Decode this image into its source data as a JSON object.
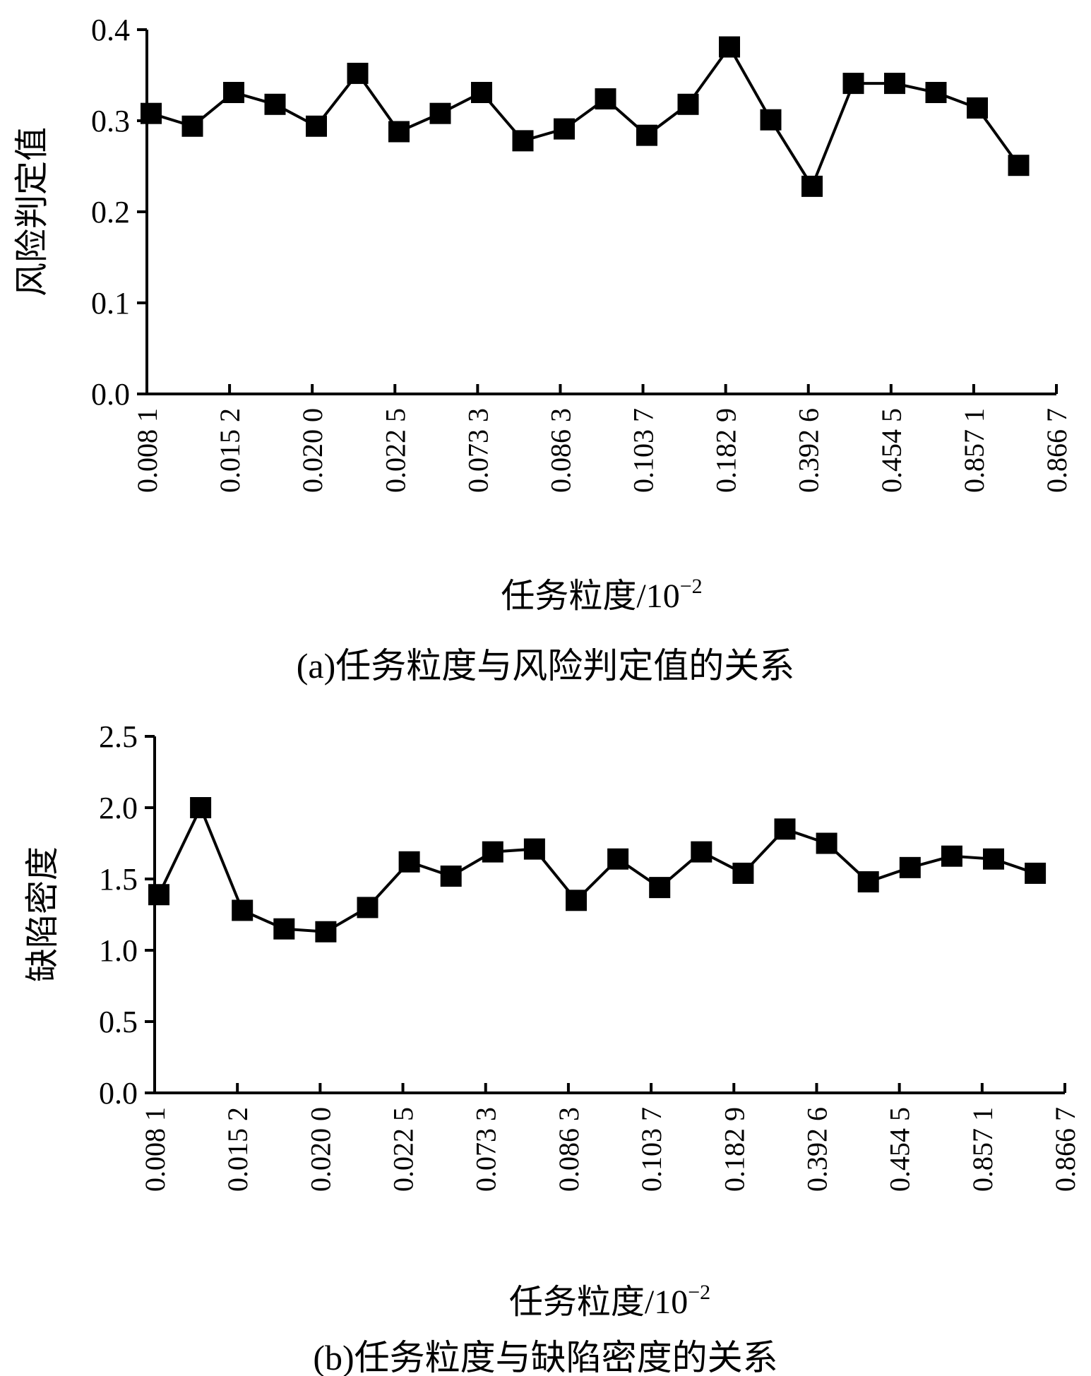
{
  "chart_data": [
    {
      "type": "line",
      "caption": "(a)任务粒度与风险判定值的关系",
      "xlabel": "任务粒度/10",
      "xlabel_exp": "−2",
      "ylabel": "风险判定值",
      "x_tick_labels": [
        "0.008 1",
        "0.015 2",
        "0.020 0",
        "0.022 5",
        "0.073 3",
        "0.086 3",
        "0.103 7",
        "0.182 9",
        "0.392 6",
        "0.454 5",
        "0.857 1",
        "0.866 7"
      ],
      "y_tick_labels": [
        "0.0",
        "0.1",
        "0.2",
        "0.3",
        "0.4"
      ],
      "ylim": [
        0,
        0.4
      ],
      "grid": false,
      "marker": "square",
      "values": [
        0.308,
        0.294,
        0.331,
        0.318,
        0.294,
        0.352,
        0.288,
        0.308,
        0.331,
        0.278,
        0.291,
        0.324,
        0.284,
        0.318,
        0.381,
        0.301,
        0.228,
        0.341,
        0.341,
        0.331,
        0.314,
        0.251
      ]
    },
    {
      "type": "line",
      "caption": "(b)任务粒度与缺陷密度的关系",
      "xlabel": "任务粒度/10",
      "xlabel_exp": "−2",
      "ylabel": "缺陷密度",
      "x_tick_labels": [
        "0.008 1",
        "0.015 2",
        "0.020 0",
        "0.022 5",
        "0.073 3",
        "0.086 3",
        "0.103 7",
        "0.182 9",
        "0.392 6",
        "0.454 5",
        "0.857 1",
        "0.866 7"
      ],
      "y_tick_labels": [
        "0.0",
        "0.5",
        "1.0",
        "1.5",
        "2.0",
        "2.5"
      ],
      "ylim": [
        0,
        2.5
      ],
      "grid": false,
      "marker": "square",
      "values": [
        1.39,
        2.0,
        1.28,
        1.15,
        1.13,
        1.3,
        1.62,
        1.52,
        1.69,
        1.71,
        1.35,
        1.64,
        1.44,
        1.69,
        1.54,
        1.85,
        1.75,
        1.48,
        1.58,
        1.66,
        1.64,
        1.54
      ]
    }
  ]
}
